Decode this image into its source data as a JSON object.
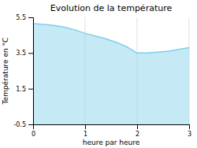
{
  "chart_data": {
    "type": "area",
    "title": "Evolution de la température",
    "xlabel": "heure par heure",
    "ylabel": "Température en °C",
    "x": [
      0,
      0.2,
      0.4,
      0.6,
      0.8,
      1.0,
      1.2,
      1.4,
      1.6,
      1.8,
      2.0,
      2.2,
      2.4,
      2.6,
      2.8,
      3.0
    ],
    "values": [
      5.15,
      5.1,
      5.05,
      4.95,
      4.8,
      4.6,
      4.45,
      4.3,
      4.1,
      3.85,
      3.5,
      3.5,
      3.55,
      3.6,
      3.7,
      3.8
    ],
    "color": "#7ecfe8",
    "xlim": [
      0,
      3
    ],
    "ylim": [
      -0.5,
      5.5
    ],
    "xticks": [
      0,
      1,
      2,
      3
    ],
    "yticks": [
      -0.5,
      1.5,
      3.5,
      5.5
    ],
    "grid": "x"
  }
}
